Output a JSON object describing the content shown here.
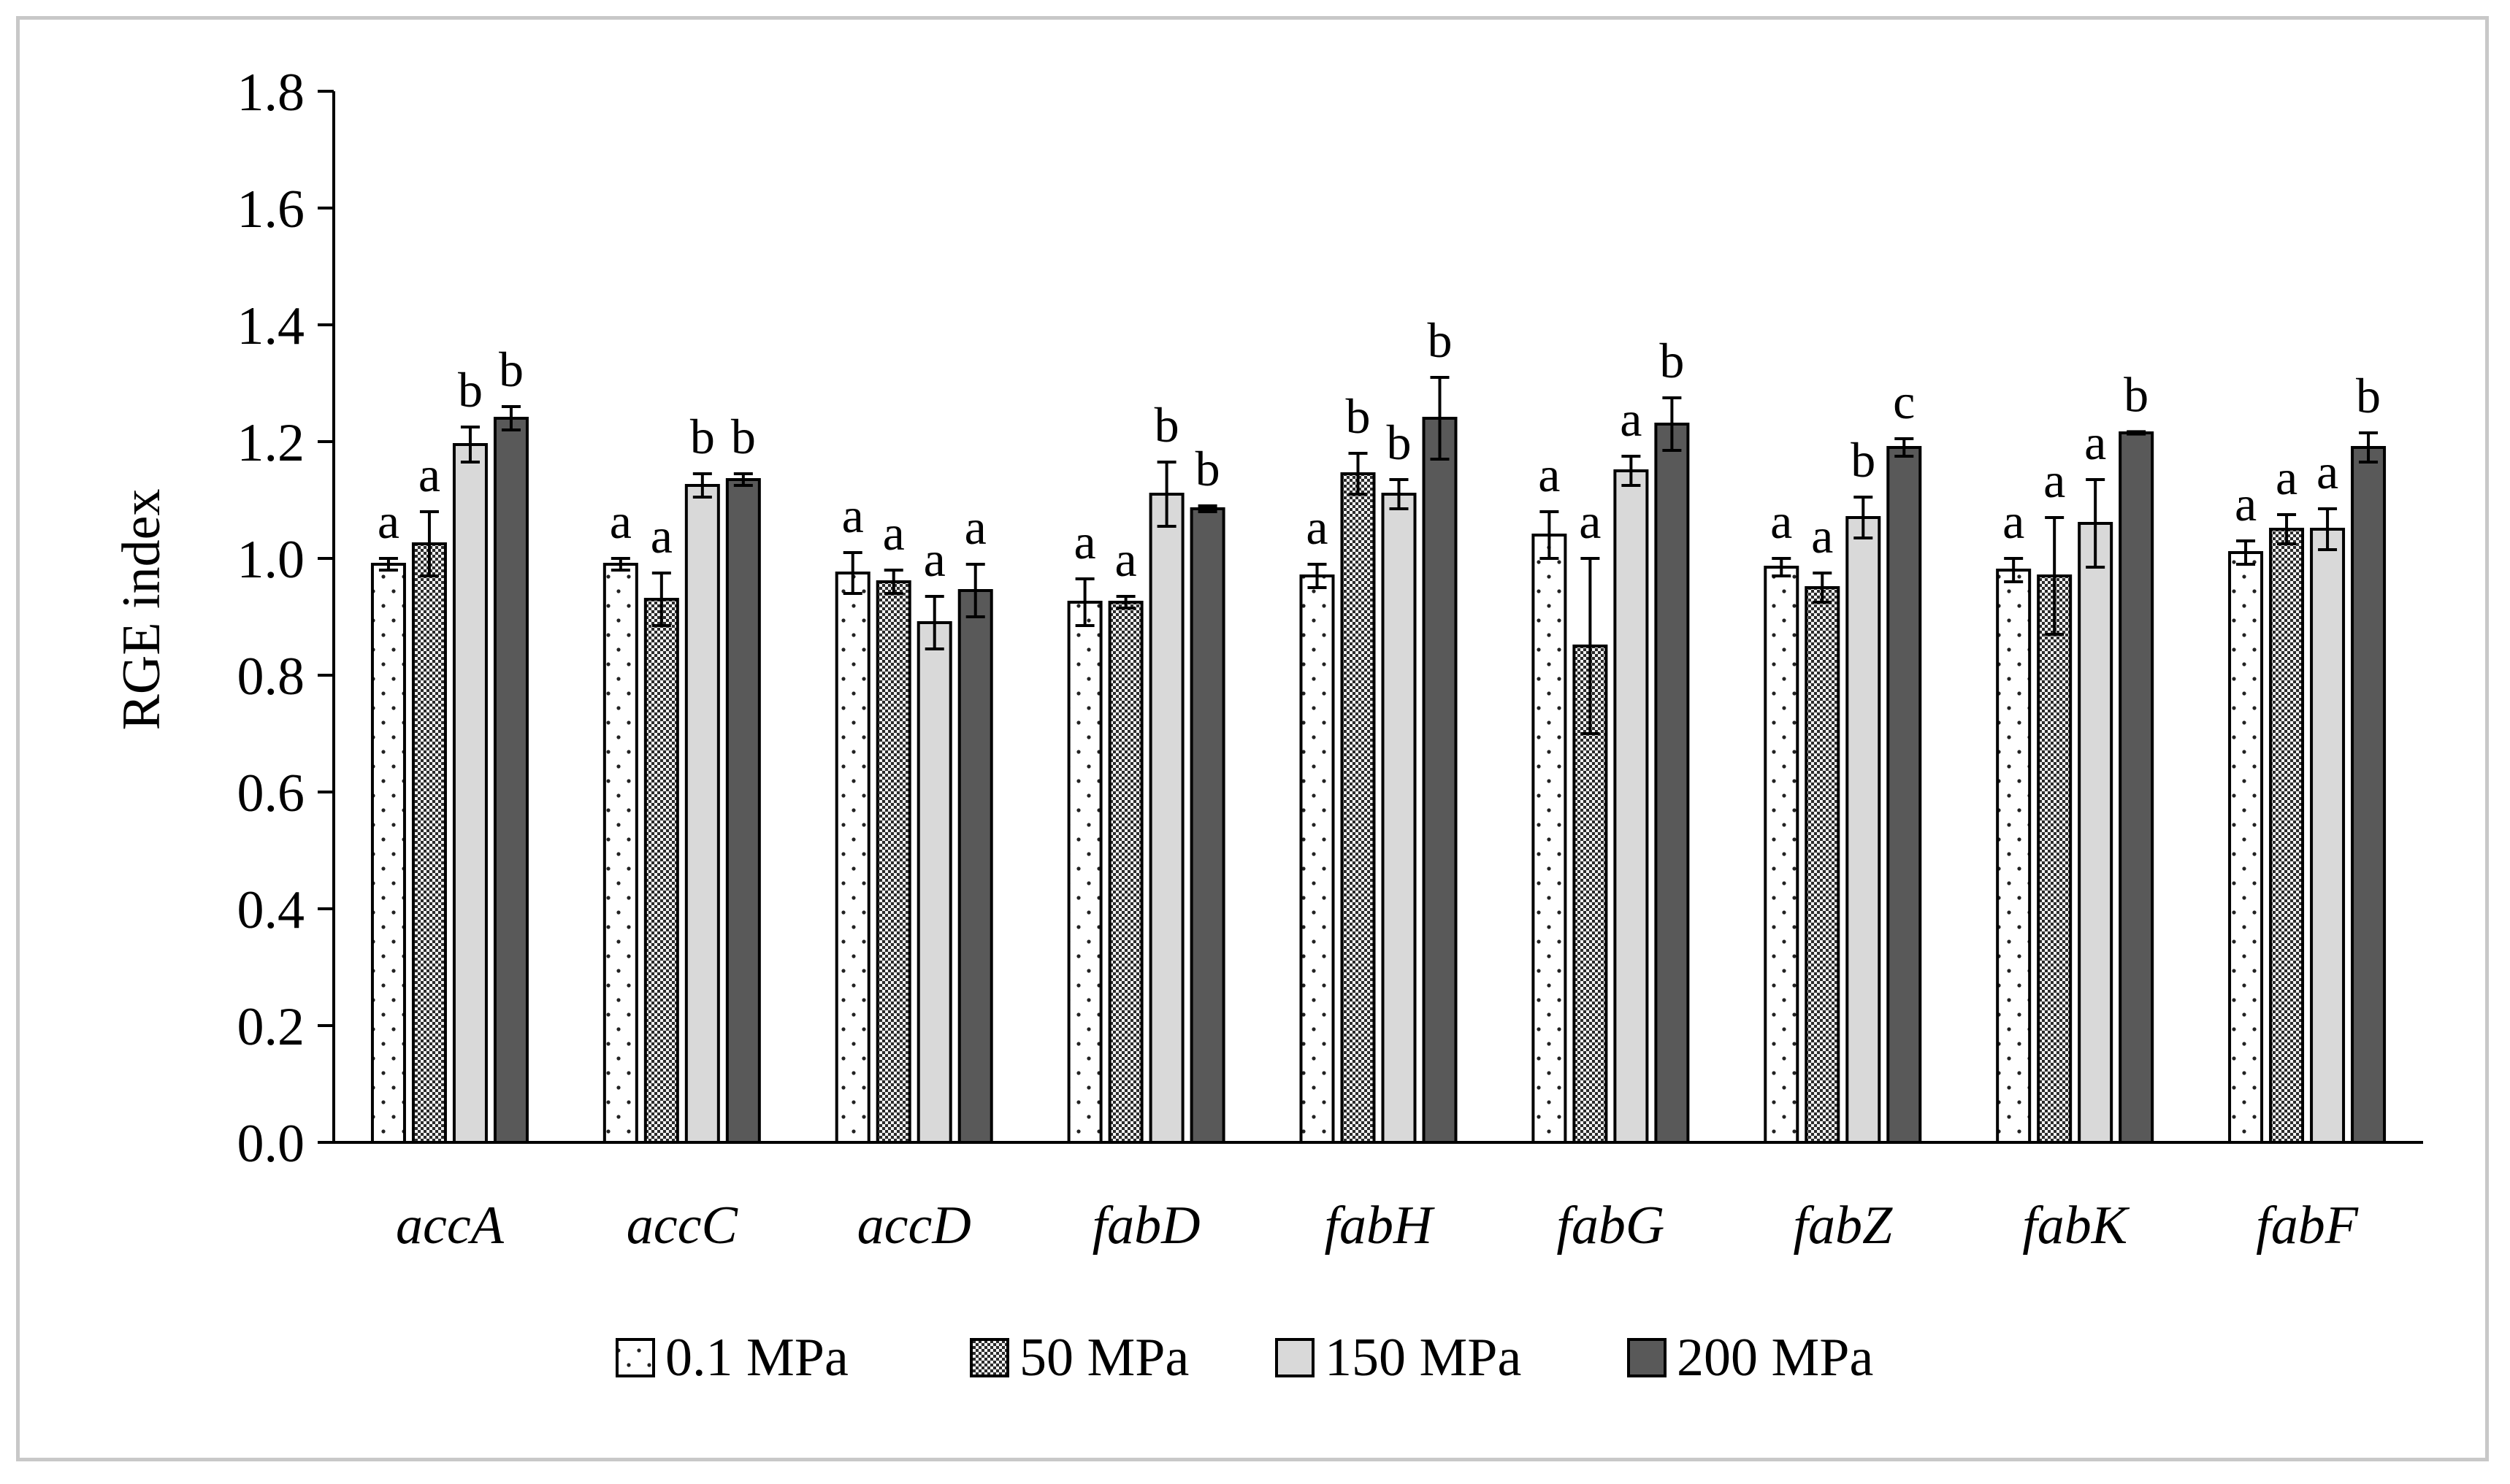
{
  "chart_data": {
    "type": "bar",
    "title": "",
    "xlabel": "",
    "ylabel": "RGE index",
    "ylim": [
      0,
      1.8
    ],
    "yticks": [
      0.0,
      0.2,
      0.4,
      0.6,
      0.8,
      1.0,
      1.2,
      1.4,
      1.6,
      1.8
    ],
    "ytick_labels": [
      "0.0",
      "0.2",
      "0.4",
      "0.6",
      "0.8",
      "1.0",
      "1.2",
      "1.4",
      "1.6",
      "1.8"
    ],
    "grid": false,
    "legend_position": "bottom",
    "categories": [
      "accA",
      "accC",
      "accD",
      "fabD",
      "fabH",
      "fabG",
      "fabZ",
      "fabK",
      "fabF"
    ],
    "series": [
      {
        "name": "0.1 MPa",
        "pattern": "dotted",
        "color": "#ffffff",
        "values": [
          0.99,
          0.99,
          0.975,
          0.925,
          0.97,
          1.04,
          0.985,
          0.98,
          1.01
        ],
        "errors": [
          0.01,
          0.01,
          0.035,
          0.04,
          0.02,
          0.04,
          0.015,
          0.02,
          0.02
        ],
        "labels": [
          "a",
          "a",
          "a",
          "a",
          "a",
          "a",
          "a",
          "a",
          "a"
        ]
      },
      {
        "name": "50 MPa",
        "pattern": "checkered",
        "color": "#3a3a3a",
        "values": [
          1.025,
          0.93,
          0.96,
          0.925,
          1.145,
          0.85,
          0.95,
          0.97,
          1.05
        ],
        "errors": [
          0.055,
          0.045,
          0.02,
          0.01,
          0.035,
          0.15,
          0.025,
          0.1,
          0.025
        ],
        "labels": [
          "a",
          "a",
          "a",
          "a",
          "b",
          "a",
          "a",
          "a",
          "a"
        ]
      },
      {
        "name": "150 MPa",
        "pattern": "solid",
        "color": "#d9d9d9",
        "values": [
          1.195,
          1.125,
          0.89,
          1.11,
          1.11,
          1.15,
          1.07,
          1.06,
          1.05
        ],
        "errors": [
          0.03,
          0.02,
          0.045,
          0.055,
          0.025,
          0.025,
          0.035,
          0.075,
          0.035
        ],
        "labels": [
          "b",
          "b",
          "a",
          "b",
          "b",
          "a",
          "b",
          "a",
          "a"
        ]
      },
      {
        "name": "200 MPa",
        "pattern": "solid",
        "color": "#595959",
        "values": [
          1.24,
          1.135,
          0.945,
          1.085,
          1.24,
          1.23,
          1.19,
          1.215,
          1.19
        ],
        "errors": [
          0.02,
          0.01,
          0.045,
          0.005,
          0.07,
          0.045,
          0.015,
          0.002,
          0.025
        ],
        "labels": [
          "b",
          "b",
          "a",
          "b",
          "b",
          "b",
          "c",
          "b",
          "b"
        ]
      }
    ]
  }
}
